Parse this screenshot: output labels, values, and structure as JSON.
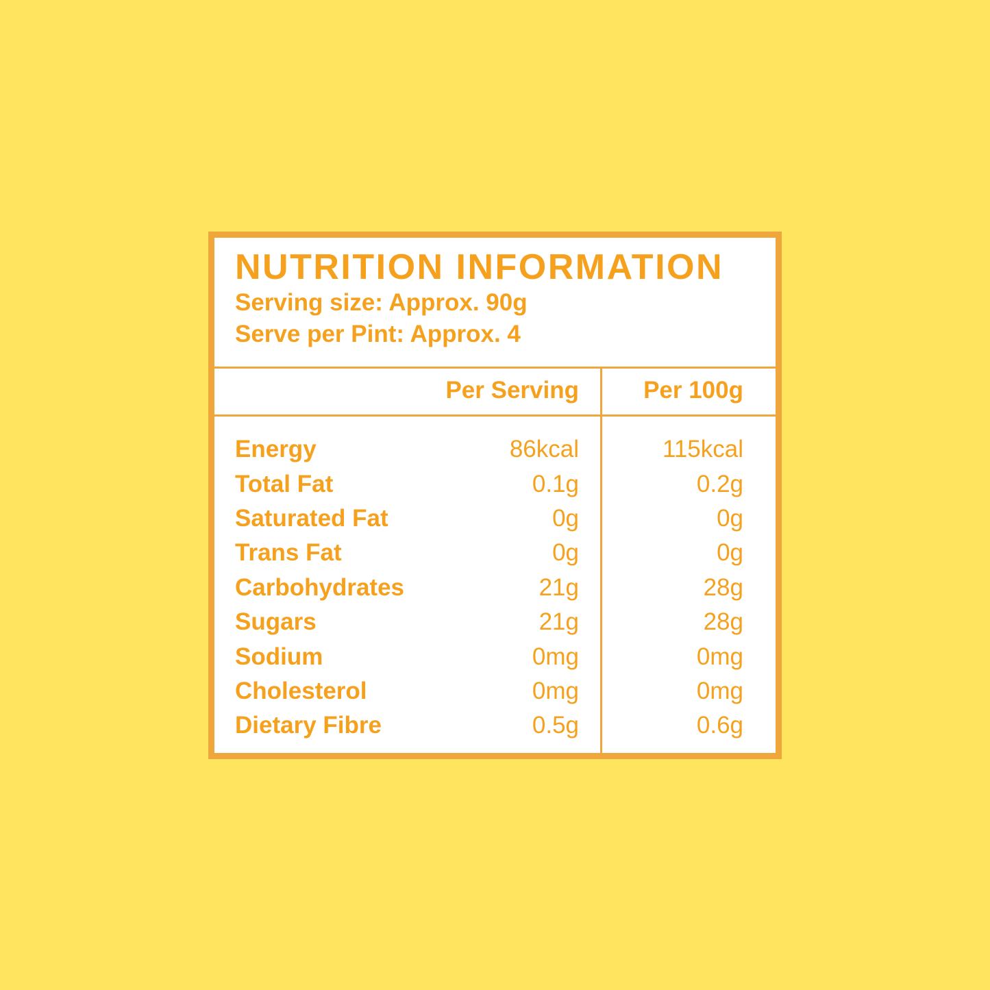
{
  "colors": {
    "background": "#FEE45F",
    "text_orange": "#F6A11E",
    "border_orange": "#EFA73B",
    "panel_white": "#FFFFFF"
  },
  "panel": {
    "title": "NUTRITION INFORMATION",
    "serving_size_line": "Serving size: Approx. 90g",
    "serves_line": "Serve per Pint: Approx. 4",
    "columns": [
      "Per Serving",
      "Per 100g"
    ],
    "rows": [
      {
        "name": "Energy",
        "per_serving": "86kcal",
        "per_100g": "115kcal"
      },
      {
        "name": "Total Fat",
        "per_serving": "0.1g",
        "per_100g": "0.2g"
      },
      {
        "name": "Saturated Fat",
        "per_serving": "0g",
        "per_100g": "0g"
      },
      {
        "name": "Trans Fat",
        "per_serving": "0g",
        "per_100g": "0g"
      },
      {
        "name": "Carbohydrates",
        "per_serving": "21g",
        "per_100g": "28g"
      },
      {
        "name": "Sugars",
        "per_serving": "21g",
        "per_100g": "28g"
      },
      {
        "name": "Sodium",
        "per_serving": "0mg",
        "per_100g": "0mg"
      },
      {
        "name": "Cholesterol",
        "per_serving": "0mg",
        "per_100g": "0mg"
      },
      {
        "name": "Dietary Fibre",
        "per_serving": "0.5g",
        "per_100g": "0.6g"
      }
    ]
  }
}
